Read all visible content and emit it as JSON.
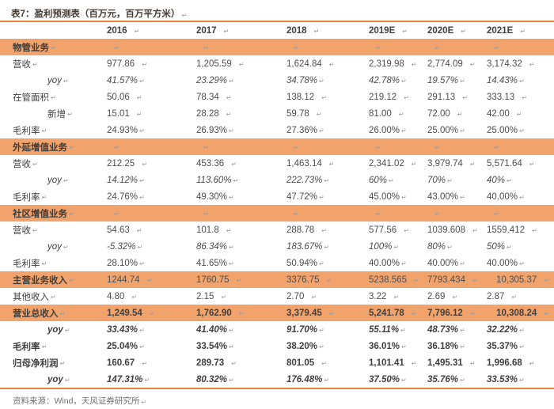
{
  "title": "表7：盈利预测表（百万元，百万平方米）",
  "source_line": "资料来源：Wind，天风证券研究所",
  "paragraph_mark": "↵",
  "colors": {
    "band_orange": "#F2A36B",
    "rule_orange": "#E8813E",
    "title_color": "#433B35"
  },
  "table": {
    "rows": [
      {
        "type": "header",
        "label": "",
        "cells": [
          "2016",
          "2017",
          "2018",
          "2019E",
          "2020E",
          "2021E"
        ]
      },
      {
        "type": "section",
        "label": "物管业务",
        "cells": [
          "",
          "",
          "",
          "",
          "",
          ""
        ]
      },
      {
        "type": "data",
        "label": "营收",
        "cells": [
          "977.86",
          "1,205.59",
          "1,624.84",
          "2,319.98",
          "2,774.09",
          "3,174.32"
        ]
      },
      {
        "type": "yoy",
        "label": "yoy",
        "cells": [
          "41.57%",
          "23.29%",
          "34.78%",
          "42.78%",
          "19.57%",
          "14.43%"
        ]
      },
      {
        "type": "data",
        "label": "在管面积",
        "cells": [
          "50.06",
          "78.34",
          "138.12",
          "219.12",
          "291.13",
          "333.13"
        ]
      },
      {
        "type": "data-indent",
        "label": "新增",
        "cells": [
          "15.01",
          "28.28",
          "59.78",
          "81.00",
          "72.00",
          "42.00"
        ]
      },
      {
        "type": "data",
        "label": "毛利率",
        "cells": [
          "24.93%",
          "26.93%",
          "27.36%",
          "26.00%",
          "25.00%",
          "25.00%"
        ]
      },
      {
        "type": "section",
        "label": "外延增值业务",
        "cells": [
          "",
          "",
          "",
          "",
          "",
          ""
        ]
      },
      {
        "type": "data",
        "label": "营收",
        "cells": [
          "212.25",
          "453.36",
          "1,463.14",
          "2,341.02",
          "3,979.74",
          "5,571.64"
        ]
      },
      {
        "type": "yoy",
        "label": "yoy",
        "cells": [
          "14.12%",
          "113.60%",
          "222.73%",
          "60%",
          "70%",
          "40%"
        ]
      },
      {
        "type": "data",
        "label": "毛利率",
        "cells": [
          "24.76%",
          "49.30%",
          "47.72%",
          "45.00%",
          "43.00%",
          "40.00%"
        ]
      },
      {
        "type": "section",
        "label": "社区增值业务",
        "cells": [
          "",
          "",
          "",
          "",
          "",
          ""
        ]
      },
      {
        "type": "data",
        "label": "营收",
        "cells": [
          "54.63",
          "101.8",
          "288.78",
          "577.56",
          "1039.608",
          "1559.412"
        ]
      },
      {
        "type": "yoy",
        "label": "yoy",
        "cells": [
          "-5.32%",
          "86.34%",
          "183.67%",
          "100%",
          "80%",
          "50%"
        ]
      },
      {
        "type": "data",
        "label": "毛利率",
        "cells": [
          "28.10%",
          "41.65%",
          "50.94%",
          "40.00%",
          "40.00%",
          "40.00%"
        ]
      },
      {
        "type": "total",
        "label": "主营业务收入",
        "cells": [
          "1244.74",
          "1760.75",
          "3376.75",
          "5238.565",
          "7793.434",
          "10,305.37"
        ]
      },
      {
        "type": "data",
        "label": "其他收入",
        "cells": [
          "4.80",
          "2.15",
          "2.70",
          "3.22",
          "2.69",
          "2.87"
        ]
      },
      {
        "type": "grand",
        "label": "营业总收入",
        "cells": [
          "1,249.54",
          "1,762.90",
          "3,379.45",
          "5,241.78",
          "7,796.12",
          "10,308.24"
        ]
      },
      {
        "type": "yoy-bold",
        "label": "yoy",
        "cells": [
          "33.43%",
          "41.40%",
          "91.70%",
          "55.11%",
          "48.73%",
          "32.22%"
        ]
      },
      {
        "type": "data-bold",
        "label": "毛利率",
        "cells": [
          "25.04%",
          "33.54%",
          "38.20%",
          "36.01%",
          "36.18%",
          "35.37%"
        ]
      },
      {
        "type": "data-bold",
        "label": "归母净利润",
        "cells": [
          "160.67",
          "289.73",
          "801.05",
          "1,101.41",
          "1,495.31",
          "1,996.68"
        ]
      },
      {
        "type": "yoy-bold",
        "label": "yoy",
        "cells": [
          "147.31%",
          "80.32%",
          "176.48%",
          "37.50%",
          "35.76%",
          "33.53%"
        ]
      }
    ]
  }
}
